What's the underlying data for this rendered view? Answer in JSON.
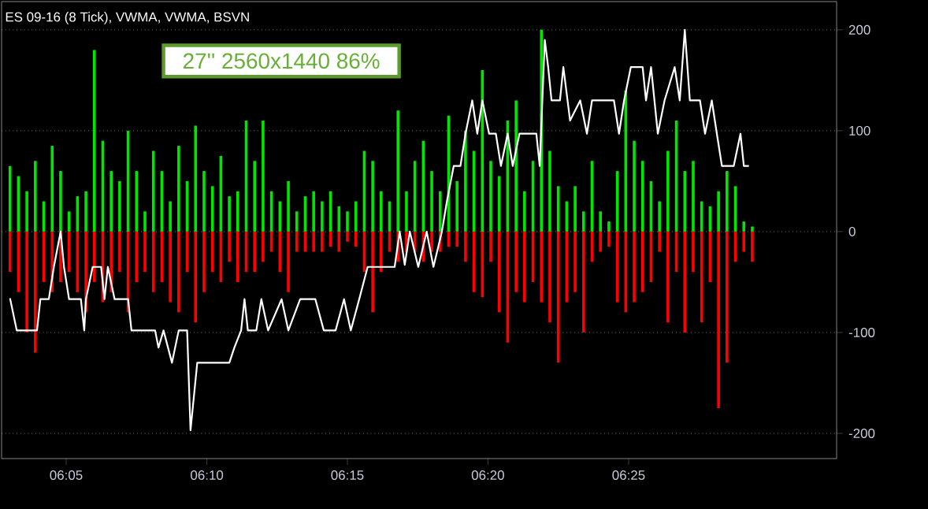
{
  "chart_data": {
    "type": "bar",
    "title": "ES 09-16 (8 Tick), VWMA, VWMA, BSVN",
    "annotations": [
      "27'' 2560x1440  86%"
    ],
    "x": [
      6.05,
      6.055,
      6.06,
      6.065,
      6.07,
      6.075,
      6.08,
      6.085,
      6.09,
      6.095,
      6.1,
      6.105,
      6.11,
      6.115,
      6.12,
      6.125,
      6.13,
      6.135,
      6.14,
      6.145,
      6.15,
      6.155,
      6.16,
      6.165,
      6.17,
      6.175,
      6.18,
      6.185,
      6.19,
      6.195,
      6.2,
      6.205,
      6.21,
      6.215,
      6.22,
      6.225,
      6.23,
      6.235,
      6.24,
      6.245,
      6.25,
      6.255,
      6.26,
      6.265,
      6.27,
      6.275,
      6.28,
      6.285,
      6.29,
      6.295,
      6.3,
      6.305,
      6.31,
      6.315,
      6.32,
      6.325,
      6.33,
      6.335,
      6.34,
      6.345,
      6.35,
      6.355,
      6.36,
      6.365,
      6.37,
      6.375,
      6.38,
      6.385,
      6.39,
      6.395,
      6.4,
      6.405,
      6.41,
      6.415,
      6.42,
      6.425,
      6.43,
      6.435,
      6.44,
      6.445,
      6.45,
      6.455,
      6.46,
      6.465,
      6.47,
      6.475,
      6.48,
      6.485,
      6.49
    ],
    "series": [
      {
        "color": "#00e600",
        "values": [
          65,
          55,
          40,
          70,
          30,
          85,
          60,
          20,
          35,
          40,
          180,
          90,
          60,
          50,
          100,
          60,
          20,
          80,
          60,
          30,
          85,
          50,
          105,
          60,
          45,
          75,
          35,
          40,
          110,
          70,
          110,
          40,
          30,
          50,
          20,
          35,
          40,
          30,
          40,
          25,
          20,
          30,
          80,
          70,
          40,
          30,
          120,
          40,
          70,
          90,
          60,
          40,
          115,
          50,
          100,
          80,
          160,
          70,
          55,
          110,
          130,
          40,
          70,
          200,
          80,
          45,
          30,
          45,
          20,
          70,
          20,
          10,
          60,
          140,
          90,
          70,
          50,
          30,
          80,
          110,
          60,
          70,
          30,
          25,
          40,
          60,
          45,
          10,
          5
        ]
      },
      {
        "color": "#ff0000",
        "values": [
          -40,
          -60,
          -100,
          -120,
          -50,
          -60,
          -50,
          -40,
          -60,
          -80,
          -50,
          -70,
          -60,
          -40,
          -80,
          -50,
          -40,
          -60,
          -50,
          -70,
          -80,
          -40,
          -90,
          -60,
          -40,
          -50,
          -30,
          -50,
          -40,
          -40,
          -30,
          -20,
          -40,
          -60,
          -20,
          -20,
          -20,
          -20,
          -15,
          -20,
          -10,
          -15,
          -40,
          -80,
          -40,
          -20,
          -30,
          -20,
          -20,
          -30,
          -20,
          -20,
          -15,
          -15,
          -30,
          -60,
          -65,
          -30,
          -80,
          -110,
          -60,
          -70,
          -50,
          -70,
          -90,
          -130,
          -70,
          -60,
          -100,
          -30,
          -20,
          -15,
          -70,
          -80,
          -70,
          -60,
          -50,
          -20,
          -90,
          -40,
          -100,
          -40,
          -90,
          -50,
          -175,
          -130,
          -30,
          -20,
          -30
        ]
      },
      {
        "type": "line",
        "color": "#ffffff",
        "x": [
          6.05,
          6.054,
          6.066,
          6.068,
          6.073,
          6.076,
          6.08,
          6.082,
          6.085,
          6.092,
          6.094,
          6.095,
          6.099,
          6.104,
          6.106,
          6.108,
          6.112,
          6.12,
          6.122,
          6.136,
          6.138,
          6.141,
          6.146,
          6.15,
          6.155,
          6.157,
          6.161,
          6.18,
          6.183,
          6.187,
          6.189,
          6.191,
          6.196,
          6.199,
          6.203,
          6.211,
          6.215,
          6.222,
          6.231,
          6.236,
          6.243,
          6.248,
          6.252,
          6.257,
          6.262,
          6.278,
          6.281,
          6.284,
          6.287,
          6.292,
          6.297,
          6.301,
          6.306,
          6.309,
          6.313,
          6.317,
          6.32,
          6.324,
          6.327,
          6.33,
          6.334,
          6.338,
          6.341,
          6.345,
          6.348,
          6.352,
          6.362,
          6.364,
          6.367,
          6.369,
          6.371,
          6.376,
          6.378,
          6.382,
          6.388,
          6.392,
          6.395,
          6.408,
          6.411,
          6.414,
          6.418,
          6.425,
          6.427,
          6.43,
          6.434,
          6.438,
          6.444,
          6.447,
          6.45,
          6.453,
          6.459,
          6.462,
          6.466,
          6.469,
          6.472,
          6.479,
          6.483,
          6.485,
          6.488
        ],
        "values": [
          -66,
          -98,
          -98,
          -67,
          -67,
          -35,
          0,
          -35,
          -67,
          -67,
          -98,
          -67,
          -35,
          -35,
          -67,
          -35,
          -67,
          -67,
          -98,
          -98,
          -115,
          -98,
          -130,
          -98,
          -98,
          -197,
          -130,
          -130,
          -115,
          -98,
          -67,
          -98,
          -98,
          -67,
          -98,
          -67,
          -98,
          -67,
          -67,
          -98,
          -98,
          -67,
          -98,
          -67,
          -35,
          -35,
          0,
          -33,
          0,
          -35,
          0,
          -35,
          0,
          30,
          65,
          65,
          97,
          130,
          97,
          130,
          97,
          97,
          65,
          97,
          65,
          97,
          97,
          65,
          190,
          163,
          130,
          130,
          163,
          110,
          130,
          97,
          130,
          130,
          97,
          130,
          163,
          163,
          130,
          163,
          97,
          130,
          163,
          130,
          200,
          130,
          130,
          97,
          130,
          97,
          65,
          65,
          97,
          65,
          65
        ]
      }
    ],
    "xlim": [
      6.045,
      6.54
    ],
    "ylim": [
      -225,
      228
    ],
    "xticks": [
      {
        "value": 6.0833,
        "label": "06:05"
      },
      {
        "value": 6.1667,
        "label": "06:10"
      },
      {
        "value": 6.25,
        "label": "06:15"
      },
      {
        "value": 6.3333,
        "label": "06:20"
      },
      {
        "value": 6.4167,
        "label": "06:25"
      }
    ],
    "yticks": [
      -200,
      -100,
      0,
      100,
      200
    ],
    "grid": "y"
  }
}
